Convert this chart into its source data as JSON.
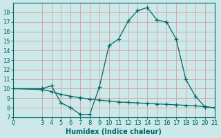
{
  "line1_x": [
    0,
    3,
    4,
    5,
    6,
    7,
    8,
    9,
    10,
    11,
    12,
    13,
    14,
    15,
    16,
    17,
    18,
    19,
    20,
    21
  ],
  "line1_y": [
    10.0,
    10.0,
    10.3,
    8.5,
    8.0,
    7.3,
    7.3,
    10.2,
    14.5,
    15.2,
    17.1,
    18.2,
    18.5,
    17.2,
    17.0,
    15.2,
    11.0,
    9.2,
    8.1,
    8.0
  ],
  "line2_x": [
    0,
    3,
    4,
    5,
    6,
    7,
    8,
    9,
    10,
    11,
    12,
    13,
    14,
    15,
    16,
    17,
    18,
    19,
    20,
    21
  ],
  "line2_y": [
    10.0,
    9.9,
    9.7,
    9.4,
    9.2,
    9.05,
    8.9,
    8.8,
    8.7,
    8.6,
    8.55,
    8.5,
    8.45,
    8.4,
    8.35,
    8.3,
    8.25,
    8.2,
    8.1,
    8.0
  ],
  "line_color": "#006666",
  "bg_color": "#cce8e8",
  "grid_major_color": "#aacccc",
  "grid_minor_color": "#bbdddd",
  "xlabel": "Humidex (Indice chaleur)",
  "xlim": [
    0,
    21
  ],
  "ylim": [
    7,
    19
  ],
  "xticks": [
    0,
    3,
    4,
    5,
    6,
    7,
    8,
    9,
    10,
    11,
    12,
    13,
    14,
    15,
    16,
    17,
    18,
    19,
    20,
    21
  ],
  "yticks": [
    7,
    8,
    9,
    10,
    11,
    12,
    13,
    14,
    15,
    16,
    17,
    18
  ],
  "xlabel_fontsize": 7,
  "tick_fontsize": 6
}
